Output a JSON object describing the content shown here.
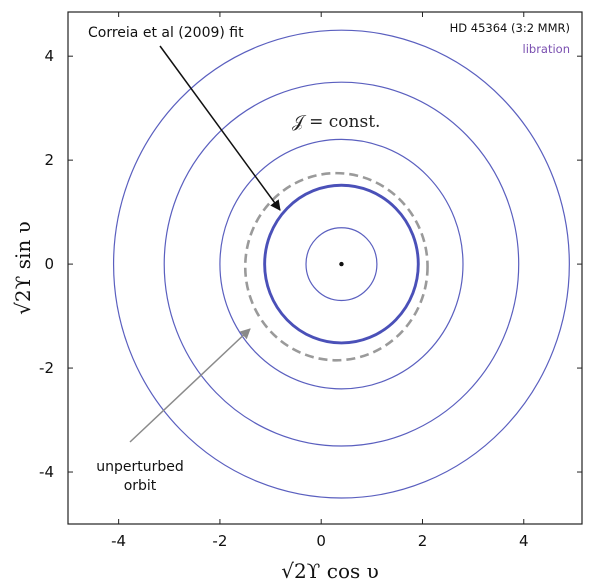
{
  "chart_data": {
    "type": "line",
    "title": "HD 45364 (3:2 MMR)",
    "subtitle": "libration",
    "xlabel": "√2ϒ cos υ",
    "ylabel": "√2ϒ sin υ",
    "xlim": [
      -5.0,
      5.15
    ],
    "ylim": [
      -5.0,
      4.85
    ],
    "x_ticks": [
      -4,
      -2,
      0,
      2,
      4
    ],
    "y_ticks": [
      -4,
      -2,
      0,
      2,
      4
    ],
    "x_tick_labels": [
      "-4",
      "-2",
      "0",
      "2",
      "4"
    ],
    "y_tick_labels": [
      "-4",
      "-2",
      "0",
      "2",
      "4"
    ],
    "grid": false,
    "center": [
      0.4,
      0.0
    ],
    "series": [
      {
        "style": "thin-blue",
        "cx": 0.4,
        "cy": 0.0,
        "r": 0.7
      },
      {
        "style": "thin-blue",
        "cx": 0.4,
        "cy": 0.0,
        "r": 1.5
      },
      {
        "style": "thin-blue",
        "cx": 0.4,
        "cy": 0.0,
        "r": 2.4
      },
      {
        "style": "thin-blue",
        "cx": 0.4,
        "cy": 0.0,
        "r": 3.5
      },
      {
        "style": "thin-blue",
        "cx": 0.4,
        "cy": 0.0,
        "r": 4.5
      },
      {
        "name": "Correia et al (2009) fit",
        "style": "thick-blue",
        "cx": 0.4,
        "cy": 0.0,
        "r": 1.52
      },
      {
        "name": "unperturbed orbit",
        "style": "dashed-gray",
        "cx": 0.3,
        "cy": -0.05,
        "r": 1.8
      }
    ],
    "annotations": [
      {
        "id": "correia",
        "text": "Correia et al (2009) fit",
        "arrow_to": [
          -0.85,
          1.15
        ]
      },
      {
        "id": "unperturbed",
        "lines": [
          "unperturbed",
          "orbit"
        ],
        "arrow_to": [
          -1.45,
          -1.2
        ]
      },
      {
        "id": "const",
        "text": "𝒥 = const."
      }
    ],
    "colors": {
      "curve": "#5a5fbf",
      "curve_thick": "#4a50b8",
      "dashed": "#9a9a9a",
      "arrow_black": "#111111",
      "arrow_gray": "#8a8a8a",
      "subtitle": "#7a4fb0"
    }
  }
}
